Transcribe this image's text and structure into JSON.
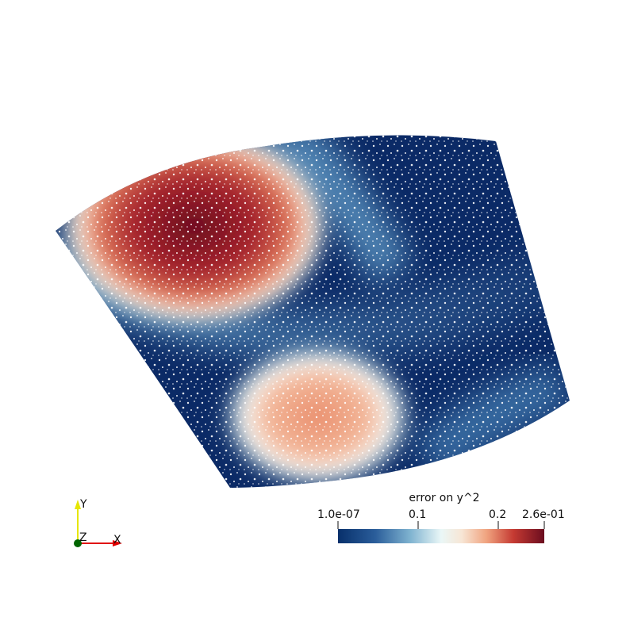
{
  "colorbar": {
    "title": "error on y^2",
    "tick_labels": [
      "1.0e-07",
      "0.1",
      "0.2",
      "2.6e-01"
    ],
    "colormap": [
      "#08306b",
      "#2a5d9a",
      "#7fb3d0",
      "#eaf7f7",
      "#f7e6d5",
      "#f0a37f",
      "#c53a32",
      "#6b0d1f"
    ]
  },
  "axes_triad": {
    "y_label": "Y",
    "z_label": "Z",
    "x_label": "X",
    "colors": {
      "y": "#e6e600",
      "z": "#006400",
      "x": "#e00000"
    }
  }
}
